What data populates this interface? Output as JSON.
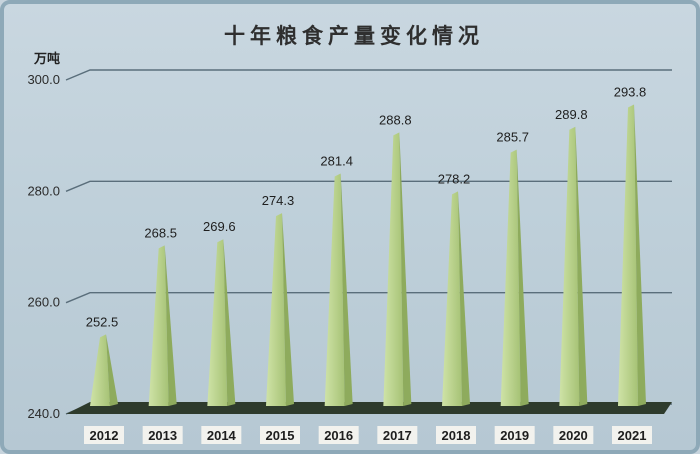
{
  "chart_data": {
    "type": "bar",
    "title": "十年粮食产量变化情况",
    "ylabel": "万吨",
    "xlabel": "",
    "categories": [
      "2012",
      "2013",
      "2014",
      "2015",
      "2016",
      "2017",
      "2018",
      "2019",
      "2020",
      "2021"
    ],
    "values": [
      252.5,
      268.5,
      269.6,
      274.3,
      281.4,
      288.8,
      278.2,
      285.7,
      289.8,
      293.8
    ],
    "value_labels": [
      "252.5",
      "268.5",
      "269.6",
      "274.3",
      "281.4",
      "288.8",
      "278.2",
      "285.7",
      "289.8",
      "293.8"
    ],
    "ylim": [
      240,
      300
    ],
    "yticks": [
      240,
      260,
      280,
      300
    ],
    "ytick_labels": [
      "240.0",
      "260.0",
      "280.0",
      "300.0"
    ],
    "grid": true,
    "bar_shape": "pyramid",
    "colors": {
      "bar_light": "#cfe3a7",
      "bar_dark": "#8eab5d",
      "floor": "#2e3b2c",
      "grid": "#5a6e7b",
      "background": "#c2d1db"
    }
  }
}
